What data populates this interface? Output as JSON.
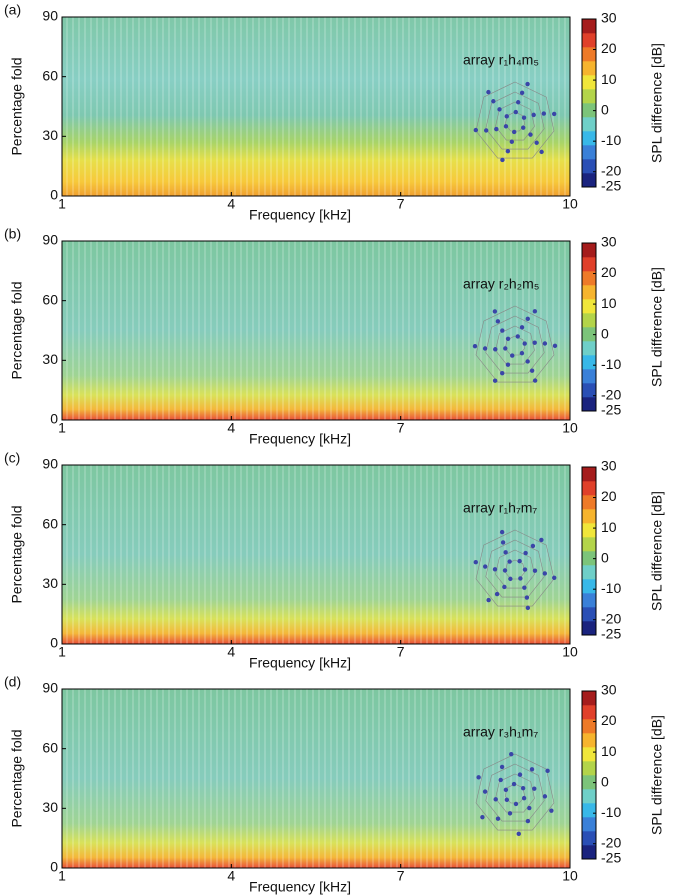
{
  "chart_data": [
    {
      "type": "contour",
      "panel_label": "(a)",
      "annotation": "array r₁h₄m₅",
      "x_label": "Frequency [kHz]",
      "y_label": "Percentage fold",
      "xlim": [
        1,
        10
      ],
      "xticks": [
        1,
        4,
        7,
        10
      ],
      "ylim": [
        0,
        90
      ],
      "yticks": [
        0,
        30,
        60,
        90
      ],
      "colorbar_label": "SPL difference [dB]",
      "clim": [
        -25,
        30
      ],
      "cticks": [
        -25,
        -20,
        -10,
        0,
        10,
        20,
        30
      ]
    },
    {
      "type": "contour",
      "panel_label": "(b)",
      "annotation": "array r₂h₂m₅",
      "x_label": "Frequency [kHz]",
      "y_label": "Percentage fold",
      "xlim": [
        1,
        10
      ],
      "xticks": [
        1,
        4,
        7,
        10
      ],
      "ylim": [
        0,
        90
      ],
      "yticks": [
        0,
        30,
        60,
        90
      ],
      "colorbar_label": "SPL difference [dB]",
      "clim": [
        -25,
        30
      ],
      "cticks": [
        -25,
        -20,
        -10,
        0,
        10,
        20,
        30
      ]
    },
    {
      "type": "contour",
      "panel_label": "(c)",
      "annotation": "array r₁h₇m₇",
      "x_label": "Frequency [kHz]",
      "y_label": "Percentage fold",
      "xlim": [
        1,
        10
      ],
      "xticks": [
        1,
        4,
        7,
        10
      ],
      "ylim": [
        0,
        90
      ],
      "yticks": [
        0,
        30,
        60,
        90
      ],
      "colorbar_label": "SPL difference [dB]",
      "clim": [
        -25,
        30
      ],
      "cticks": [
        -25,
        -20,
        -10,
        0,
        10,
        20,
        30
      ]
    },
    {
      "type": "contour",
      "panel_label": "(d)",
      "annotation": "array r₃h₁m₇",
      "x_label": "Frequency [kHz]",
      "y_label": "Percentage fold",
      "xlim": [
        1,
        10
      ],
      "xticks": [
        1,
        4,
        7,
        10
      ],
      "ylim": [
        0,
        90
      ],
      "yticks": [
        0,
        30,
        60,
        90
      ],
      "colorbar_label": "SPL difference [dB]",
      "clim": [
        -25,
        30
      ],
      "cticks": [
        -25,
        -20,
        -10,
        0,
        10,
        20,
        30
      ]
    }
  ]
}
